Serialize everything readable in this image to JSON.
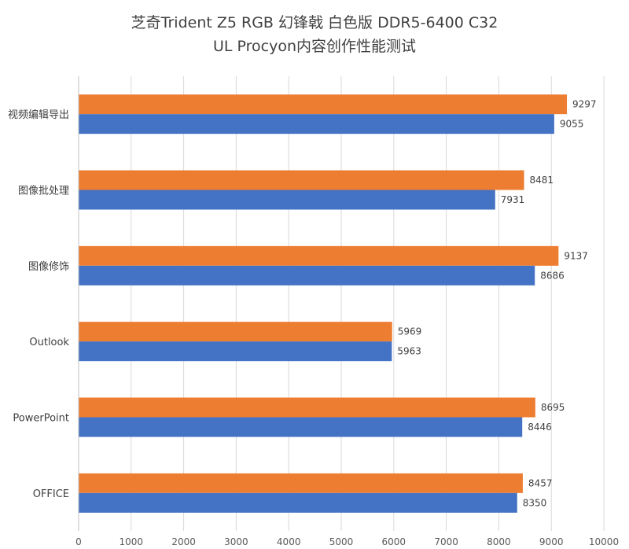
{
  "chart_data": {
    "type": "bar",
    "orientation": "horizontal",
    "title": "芝奇Trident Z5 RGB 幻锋戟 白色版 DDR5-6400 C32",
    "subtitle": "UL Procyon内容创作性能测试",
    "categories": [
      "视频编辑导出",
      "图像批处理",
      "图像修饰",
      "Outlook",
      "PowerPoint",
      "OFFICE"
    ],
    "series": [
      {
        "color": "#ED7D31",
        "values": [
          9297,
          8481,
          9137,
          5969,
          8695,
          8457
        ]
      },
      {
        "color": "#4472C4",
        "values": [
          9055,
          7931,
          8686,
          5963,
          8446,
          8350
        ]
      }
    ],
    "xlim": [
      0,
      10000
    ],
    "xticks": [
      0,
      1000,
      2000,
      3000,
      4000,
      5000,
      6000,
      7000,
      8000,
      9000,
      10000
    ],
    "grid": true,
    "legend": "none"
  }
}
